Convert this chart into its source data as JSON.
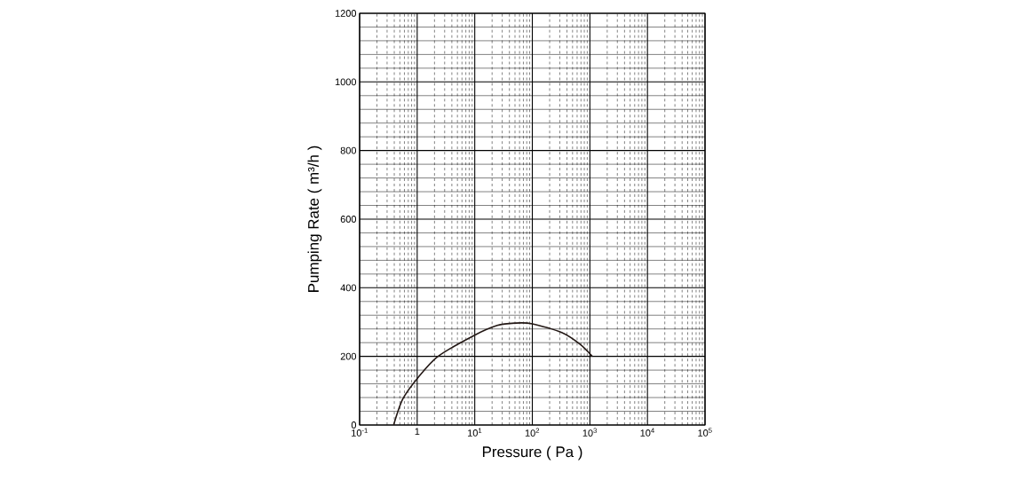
{
  "chart_data": {
    "type": "line",
    "xlabel": "Pressure ( Pa )",
    "ylabel": "Pumping Rate ( m³/h )",
    "log": "x",
    "grid": true,
    "marker": "none",
    "line_style": "solid",
    "xlim": [
      0.1,
      100000
    ],
    "ylim": [
      0,
      1200
    ],
    "xticks": [
      {
        "value": 0.1,
        "label": "10$^{-1}$"
      },
      1,
      {
        "value": 10,
        "label": "10$^{1}$"
      },
      {
        "value": 100,
        "label": "10$^{2}$"
      },
      {
        "value": 1000,
        "label": "10$^{3}$"
      },
      {
        "value": 10000,
        "label": "10$^{4}$"
      },
      {
        "value": 100000,
        "label": "10$^{5}$"
      }
    ],
    "yticks": [
      0,
      200,
      400,
      600,
      800,
      1000,
      1200
    ],
    "series": [
      {
        "color": "#231815",
        "x": [
          0.39,
          0.56,
          1,
          2.3,
          9.5,
          24.5,
          50,
          100,
          330,
          680,
          1100
        ],
        "values": [
          0,
          75,
          135,
          200,
          260,
          290,
          297,
          295,
          269,
          235,
          200
        ]
      }
    ]
  }
}
